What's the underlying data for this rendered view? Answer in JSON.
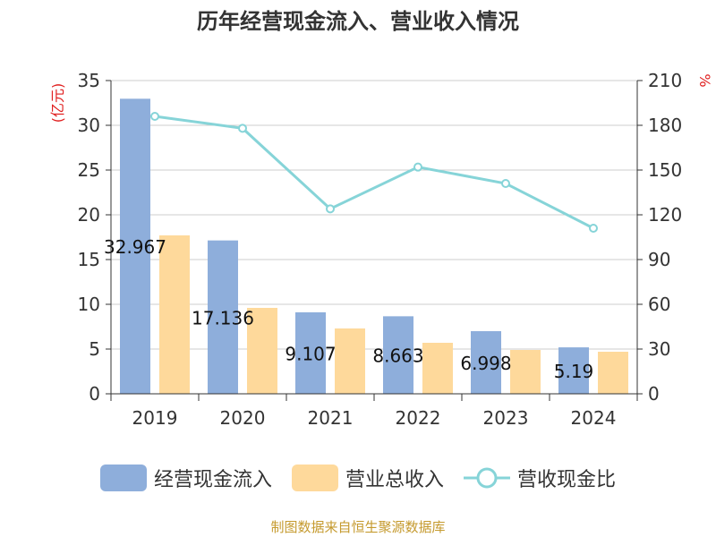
{
  "chart_data": {
    "type": "bar",
    "title": "历年经营现金流入、营业收入情况",
    "left_unit": "(亿元)",
    "right_unit": "%",
    "categories": [
      "2019",
      "2020",
      "2021",
      "2022",
      "2023",
      "2024"
    ],
    "series": [
      {
        "name": "经营现金流入",
        "kind": "bar",
        "axis": "left",
        "color": "#8eaedb",
        "values": [
          32.967,
          17.136,
          9.107,
          8.663,
          6.998,
          5.19
        ],
        "labels": [
          "32.967",
          "17.136",
          "9.107",
          "8.663",
          "6.998",
          "5.19"
        ]
      },
      {
        "name": "营业总收入",
        "kind": "bar",
        "axis": "left",
        "color": "#fed99b",
        "values": [
          17.7,
          9.6,
          7.3,
          5.7,
          4.9,
          4.7
        ]
      },
      {
        "name": "营收现金比",
        "kind": "line",
        "axis": "right",
        "color": "#86d4d8",
        "values": [
          186,
          178,
          124,
          152,
          141,
          111
        ]
      }
    ],
    "ylim_left": [
      0,
      35
    ],
    "yticks_left": [
      0,
      5,
      10,
      15,
      20,
      25,
      30,
      35
    ],
    "ylim_right": [
      0,
      210
    ],
    "yticks_right": [
      0,
      30,
      60,
      90,
      120,
      150,
      180,
      210
    ],
    "grid": true,
    "legend_position": "bottom"
  },
  "footer": {
    "source": "制图数据来自恒生聚源数据库"
  }
}
